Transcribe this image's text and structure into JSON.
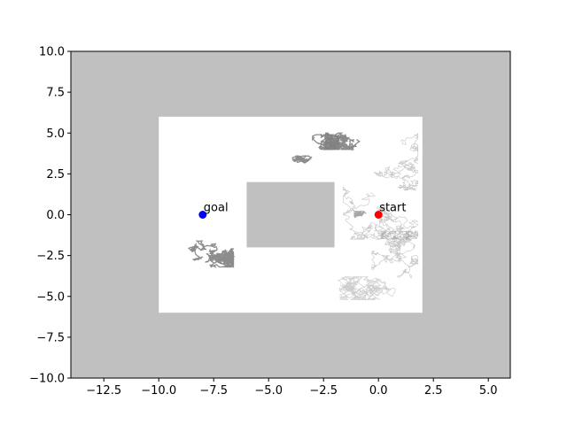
{
  "chart_data": {
    "type": "scatter",
    "title": "",
    "xlabel": "",
    "ylabel": "",
    "xlim": [
      -14,
      6
    ],
    "ylim": [
      -10,
      10
    ],
    "grid": false,
    "x_ticks": [
      -12.5,
      -10.0,
      -7.5,
      -5.0,
      -2.5,
      0.0,
      2.5,
      5.0
    ],
    "x_tick_labels": [
      "−12.5",
      "−10.0",
      "−7.5",
      "−5.0",
      "−2.5",
      "0.0",
      "2.5",
      "5.0"
    ],
    "y_ticks": [
      10.0,
      7.5,
      5.0,
      2.5,
      0.0,
      -2.5,
      -5.0,
      -7.5,
      -10.0
    ],
    "y_tick_labels": [
      "10.0",
      "7.5",
      "5.0",
      "2.5",
      "0.0",
      "−2.5",
      "−5.0",
      "−7.5",
      "−10.0"
    ],
    "free_region": {
      "x": [
        -10,
        2
      ],
      "y": [
        -6,
        6
      ]
    },
    "obstacle": {
      "x": [
        -6,
        -2
      ],
      "y": [
        -2,
        2
      ]
    },
    "points": [
      {
        "label": "start",
        "x": 0.0,
        "y": 0.0,
        "color": "#ff0000"
      },
      {
        "label": "goal",
        "x": -8.0,
        "y": 0.0,
        "color": "#0000ff"
      }
    ],
    "colors": {
      "blocked": "#c0c0c0",
      "free": "#ffffff",
      "trajectory": "#808080"
    }
  }
}
